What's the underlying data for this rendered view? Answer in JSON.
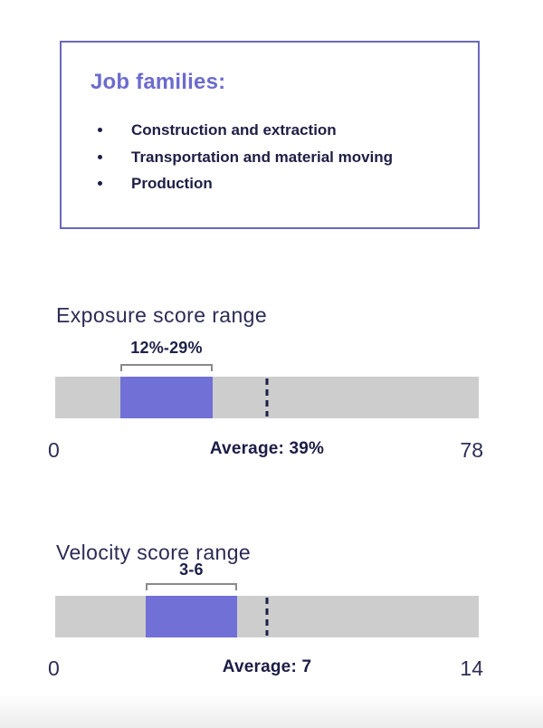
{
  "panel": {
    "title": "Job families:",
    "items": [
      "Construction and extraction",
      "Transportation and material moving",
      "Production"
    ]
  },
  "chart_data": [
    {
      "type": "range-bar",
      "title": "Exposure score range",
      "range": [
        12,
        29
      ],
      "range_label": "12%-29%",
      "average": 39,
      "average_label": "Average: 39%",
      "xlim": [
        0,
        78
      ],
      "tick_labels": [
        "0",
        "78"
      ],
      "grid": false,
      "orientation": "horizontal"
    },
    {
      "type": "range-bar",
      "title": "Velocity score range",
      "range": [
        3,
        6
      ],
      "range_label": "3-6",
      "average": 7,
      "average_label": "Average: 7",
      "xlim": [
        0,
        14
      ],
      "tick_labels": [
        "0",
        "14"
      ],
      "grid": false,
      "orientation": "horizontal"
    }
  ],
  "colors": {
    "accent_purple": "#7170D6",
    "panel_border_purple": "#6A68BE",
    "heading_purple": "#6C6BCE",
    "track_gray": "#CDCDCD",
    "text_navy": "#1E1E46",
    "bracket_gray": "#8A8A8A"
  }
}
